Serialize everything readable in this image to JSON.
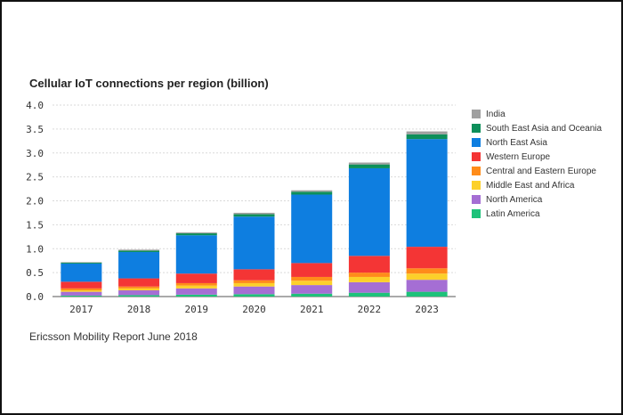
{
  "chart_data": {
    "type": "stacked-bar",
    "title": "Cellular IoT connections per region (billion)",
    "categories": [
      "2017",
      "2018",
      "2019",
      "2020",
      "2021",
      "2022",
      "2023"
    ],
    "ylim": [
      0,
      4.0
    ],
    "yticks": [
      "0.0",
      "0.5",
      "1.0",
      "1.5",
      "2.0",
      "2.5",
      "3.0",
      "3.5",
      "4.0"
    ],
    "ytick_values": [
      0,
      0.5,
      1.0,
      1.5,
      2.0,
      2.5,
      3.0,
      3.5,
      4.0
    ],
    "xlabel": "",
    "ylabel": "",
    "grid": true,
    "legend_position": "right",
    "series": [
      {
        "name": "Latin America",
        "color": "#1ec27a",
        "values": [
          0.02,
          0.03,
          0.04,
          0.05,
          0.06,
          0.08,
          0.1
        ]
      },
      {
        "name": "North America",
        "color": "#a56ed4",
        "values": [
          0.08,
          0.1,
          0.13,
          0.16,
          0.18,
          0.22,
          0.25
        ]
      },
      {
        "name": "Middle East and Africa",
        "color": "#fcd02a",
        "values": [
          0.03,
          0.04,
          0.06,
          0.07,
          0.09,
          0.11,
          0.13
        ]
      },
      {
        "name": "Central and Eastern Europe",
        "color": "#ff8c1a",
        "values": [
          0.04,
          0.04,
          0.05,
          0.06,
          0.08,
          0.09,
          0.11
        ]
      },
      {
        "name": "Western Europe",
        "color": "#f43535",
        "values": [
          0.14,
          0.17,
          0.2,
          0.23,
          0.29,
          0.35,
          0.45
        ]
      },
      {
        "name": "North East Asia",
        "color": "#0e7ee0",
        "values": [
          0.38,
          0.55,
          0.8,
          1.1,
          1.43,
          1.83,
          2.25
        ]
      },
      {
        "name": "South East Asia and Oceania",
        "color": "#0d8f5a",
        "values": [
          0.02,
          0.03,
          0.04,
          0.05,
          0.06,
          0.08,
          0.1
        ]
      },
      {
        "name": "India",
        "color": "#a0a0a0",
        "values": [
          0.01,
          0.02,
          0.02,
          0.03,
          0.03,
          0.04,
          0.06
        ]
      }
    ],
    "legend_order": [
      "India",
      "South East Asia and Oceania",
      "North East Asia",
      "Western Europe",
      "Central and Eastern Europe",
      "Middle East and Africa",
      "North America",
      "Latin America"
    ]
  },
  "source_note": "Ericsson Mobility Report June 2018"
}
